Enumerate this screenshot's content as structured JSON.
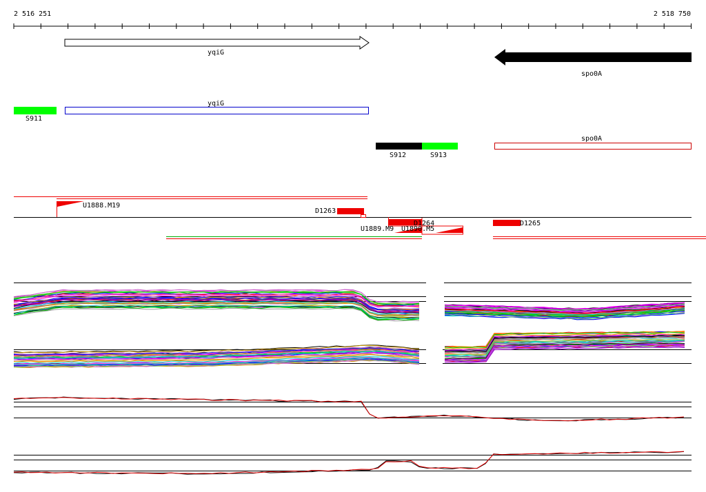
{
  "ruler": {
    "start": "2 516 251",
    "end": "2 518 750"
  },
  "genes": [
    {
      "label": "yqiG"
    },
    {
      "label": "spo0A"
    }
  ],
  "annotations": [
    {
      "label": "S911"
    },
    {
      "label": "yqiG"
    },
    {
      "label": "S912"
    },
    {
      "label": "S913"
    },
    {
      "label": "spo0A"
    }
  ],
  "features": [
    {
      "label": "U1888.M19"
    },
    {
      "label": "D1263"
    },
    {
      "label": "D1264"
    },
    {
      "label": "U1889.M9"
    },
    {
      "label": "U1890.M5"
    },
    {
      "label": "D1265"
    }
  ]
}
